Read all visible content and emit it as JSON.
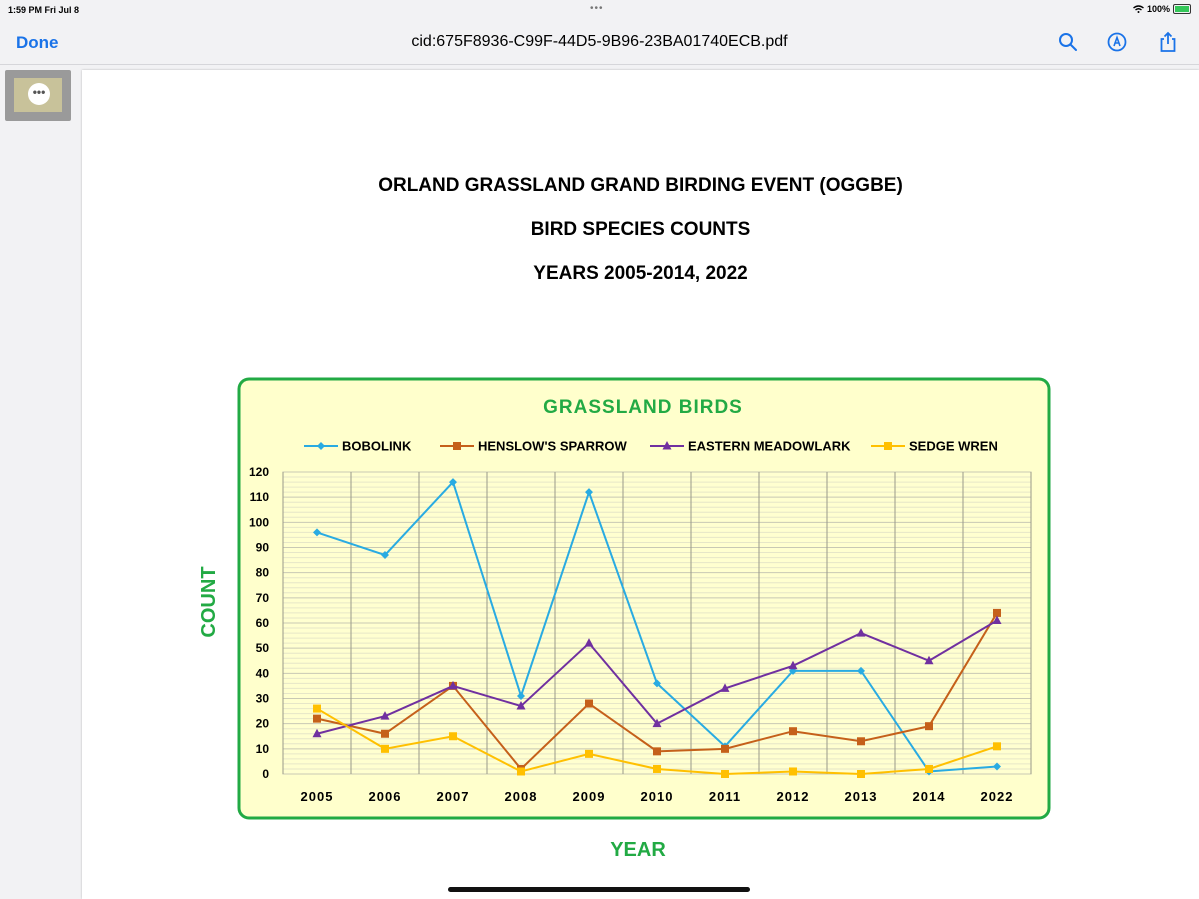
{
  "status": {
    "time": "1:59 PM  Fri Jul 8",
    "dots": "•••",
    "battery": "100%"
  },
  "nav": {
    "done_label": "Done",
    "title": "cid:675F8936-C99F-44D5-9B96-23BA01740ECB.pdf",
    "icons": [
      "search-icon",
      "markup-icon",
      "share-icon"
    ]
  },
  "sidebar": {
    "thumbnail_more": "•••"
  },
  "document": {
    "lines": [
      "ORLAND GRASSLAND GRAND BIRDING EVENT (OGGBE)",
      "BIRD SPECIES COUNTS",
      "YEARS 2005-2014, 2022"
    ]
  },
  "colors": {
    "accent": "#1a73e8",
    "chart_bg": "#ffffcc",
    "chart_border": "#22aa44",
    "title_green": "#22aa44"
  },
  "chart_data": {
    "type": "line",
    "title": "GRASSLAND BIRDS",
    "xlabel": "YEAR",
    "ylabel": "COUNT",
    "categories": [
      "2005",
      "2006",
      "2007",
      "2008",
      "2009",
      "2010",
      "2011",
      "2012",
      "2013",
      "2014",
      "2022"
    ],
    "ylim": [
      0,
      120
    ],
    "yticks": [
      0,
      10,
      20,
      30,
      40,
      50,
      60,
      70,
      80,
      90,
      100,
      110,
      120
    ],
    "legend_position": "top",
    "grid": true,
    "series": [
      {
        "name": "BOBOLINK",
        "color": "#29abe2",
        "marker": "diamond",
        "values": [
          96,
          87,
          116,
          31,
          112,
          36,
          11,
          41,
          41,
          1,
          3
        ]
      },
      {
        "name": "HENSLOW'S SPARROW",
        "color": "#c5601a",
        "marker": "square",
        "values": [
          22,
          16,
          35,
          2,
          28,
          9,
          10,
          17,
          13,
          19,
          64
        ]
      },
      {
        "name": "EASTERN MEADOWLARK",
        "color": "#7030a0",
        "marker": "triangle",
        "values": [
          16,
          23,
          35,
          27,
          52,
          20,
          34,
          43,
          56,
          45,
          61
        ]
      },
      {
        "name": "SEDGE WREN",
        "color": "#ffc000",
        "marker": "square",
        "values": [
          26,
          10,
          15,
          1,
          8,
          2,
          0,
          1,
          0,
          2,
          11
        ]
      }
    ]
  }
}
